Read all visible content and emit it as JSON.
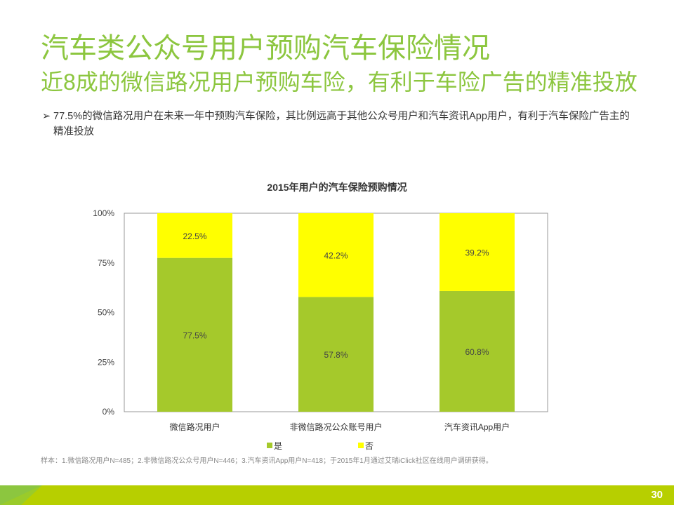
{
  "title": "汽车类公众号用户预购汽车保险情况",
  "subtitle": "近8成的微信路况用户预购车险，有利于车险广告的精准投放",
  "bullet": "77.5%的微信路况用户在未来一年中预购汽车保险，其比例远高于其他公众号用户和汽车资讯App用户，有利于汽车保险广告主的精准投放",
  "bullet_icon": "arrow-bullet-icon",
  "footnote": "样本：1.微信路况用户N=485；2.非微信路况公众号用户N=446；3.汽车资讯App用户N=418；于2015年1月通过艾瑞iClick社区在线用户调研获得。",
  "page_number": "30",
  "colors": {
    "accent": "#8cc63f",
    "yes": "#a5c92b",
    "no": "#ffff00",
    "band": "#b7cf00"
  },
  "chart_data": {
    "type": "bar",
    "stacked": true,
    "title": "2015年用户的汽车保险预购情况",
    "categories": [
      "微信路况用户",
      "非微信路况公众账号用户",
      "汽车资讯App用户"
    ],
    "series": [
      {
        "name": "是",
        "values": [
          77.5,
          57.8,
          60.8
        ],
        "labels": [
          "77.5%",
          "57.8%",
          "60.8%"
        ]
      },
      {
        "name": "否",
        "values": [
          22.5,
          42.2,
          39.2
        ],
        "labels": [
          "22.5%",
          "42.2%",
          "39.2%"
        ]
      }
    ],
    "yticks": [
      "0%",
      "25%",
      "50%",
      "75%",
      "100%"
    ],
    "ylim": [
      0,
      100
    ],
    "legend": "bottom"
  }
}
